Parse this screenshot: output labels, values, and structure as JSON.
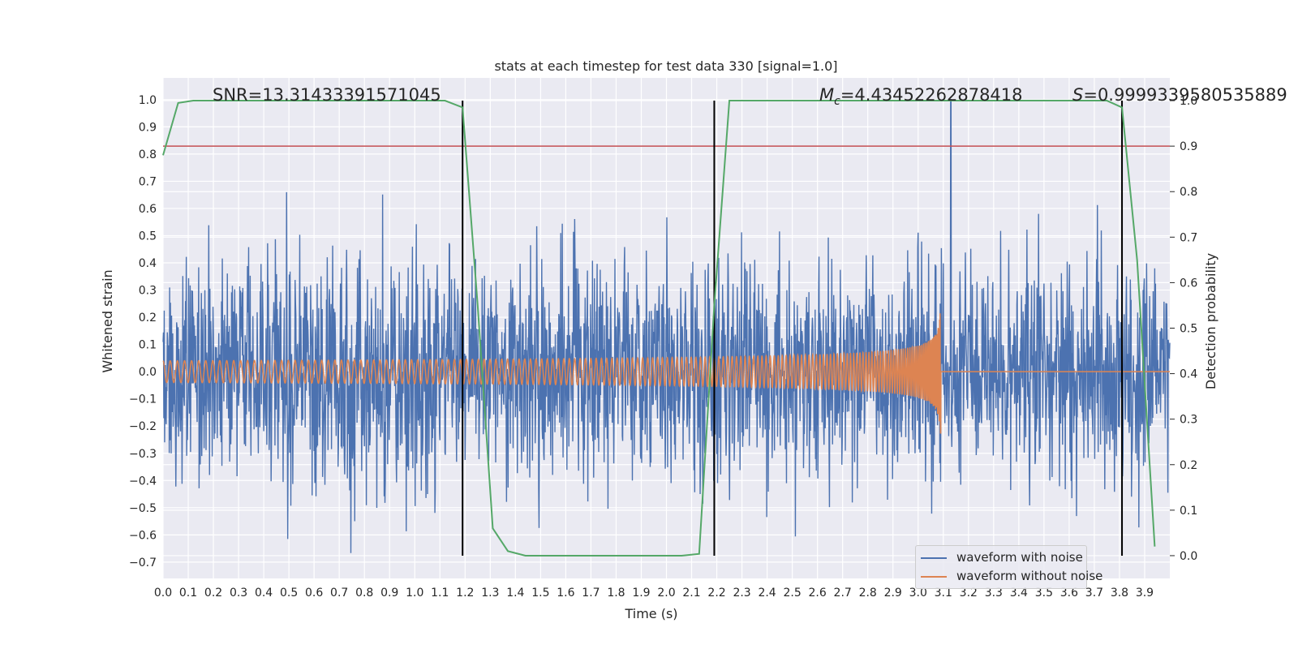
{
  "colors": {
    "noisy": "#4c72b0",
    "clean": "#dd8452",
    "probability": "#55a868",
    "threshold": "#c44e52",
    "marker": "#000000",
    "plot_background": "#eaeaf2",
    "grid": "#ffffff",
    "text": "#262626"
  },
  "chart_data": {
    "type": "line",
    "title": "stats at each timestep for test data 330 [signal=1.0]",
    "xlabel": "Time (s)",
    "ylabel": "Whitened strain",
    "y2label": "Detection probability",
    "xlim": [
      0.0,
      4.0
    ],
    "ylim": [
      -0.76,
      1.08
    ],
    "y2lim": [
      -0.05,
      1.05
    ],
    "x_ticks": [
      "0.0",
      "0.1",
      "0.2",
      "0.3",
      "0.4",
      "0.5",
      "0.6",
      "0.7",
      "0.8",
      "0.9",
      "1.0",
      "1.1",
      "1.2",
      "1.3",
      "1.4",
      "1.5",
      "1.6",
      "1.7",
      "1.8",
      "1.9",
      "2.0",
      "2.1",
      "2.2",
      "2.3",
      "2.4",
      "2.5",
      "2.6",
      "2.7",
      "2.8",
      "2.9",
      "3.0",
      "3.1",
      "3.2",
      "3.3",
      "3.4",
      "3.5",
      "3.6",
      "3.7",
      "3.8",
      "3.9"
    ],
    "y_ticks": [
      "-0.7",
      "-0.6",
      "-0.5",
      "-0.4",
      "-0.3",
      "-0.2",
      "-0.1",
      "0.0",
      "0.1",
      "0.2",
      "0.3",
      "0.4",
      "0.5",
      "0.6",
      "0.7",
      "0.8",
      "0.9",
      "1.0"
    ],
    "y2_ticks": [
      "0.0",
      "0.1",
      "0.2",
      "0.3",
      "0.4",
      "0.5",
      "0.6",
      "0.7",
      "0.8",
      "0.9",
      "1.0"
    ],
    "grid": true,
    "legend_position": "bottom-right",
    "annotations": {
      "snr": "SNR=13.31433391571045",
      "mc_symbol": "M",
      "mc_subscript": "c",
      "mc_value": "=4.43452262878418",
      "s_symbol": "S",
      "s_value": "=0.9999339580535889"
    },
    "series": [
      {
        "name": "waveform with noise",
        "kind": "noise",
        "x_range": [
          0.0,
          4.0
        ],
        "approx_sigma": 0.2,
        "approx_peak_range": [
          -0.69,
          1.0
        ],
        "peak_x": 3.13
      },
      {
        "name": "waveform without noise",
        "kind": "chirp",
        "x_range": [
          0.0,
          3.09
        ],
        "start_amplitude": 0.04,
        "max_amplitude": 0.25,
        "merger_x": 3.09,
        "start_frequency_hz": 35,
        "after_merger_value": 0.0
      },
      {
        "name": "",
        "kind": "detection-probability",
        "axis": "right",
        "x": [
          0.0,
          0.06,
          0.12,
          1.12,
          1.19,
          1.25,
          1.31,
          1.37,
          1.44,
          2.06,
          2.13,
          2.19,
          2.25,
          3.75,
          3.81,
          3.87,
          3.94
        ],
        "y": [
          0.88,
          0.995,
          1.0,
          1.0,
          0.985,
          0.55,
          0.06,
          0.01,
          0.0,
          0.0,
          0.004,
          0.55,
          1.0,
          1.0,
          0.985,
          0.65,
          0.02
        ]
      },
      {
        "name": "",
        "kind": "threshold",
        "axis": "right",
        "value": 0.9
      }
    ],
    "vertical_markers_x": [
      1.19,
      2.19,
      3.81
    ]
  },
  "legend": {
    "items": [
      {
        "label": "waveform with noise"
      },
      {
        "label": "waveform without noise"
      }
    ]
  }
}
